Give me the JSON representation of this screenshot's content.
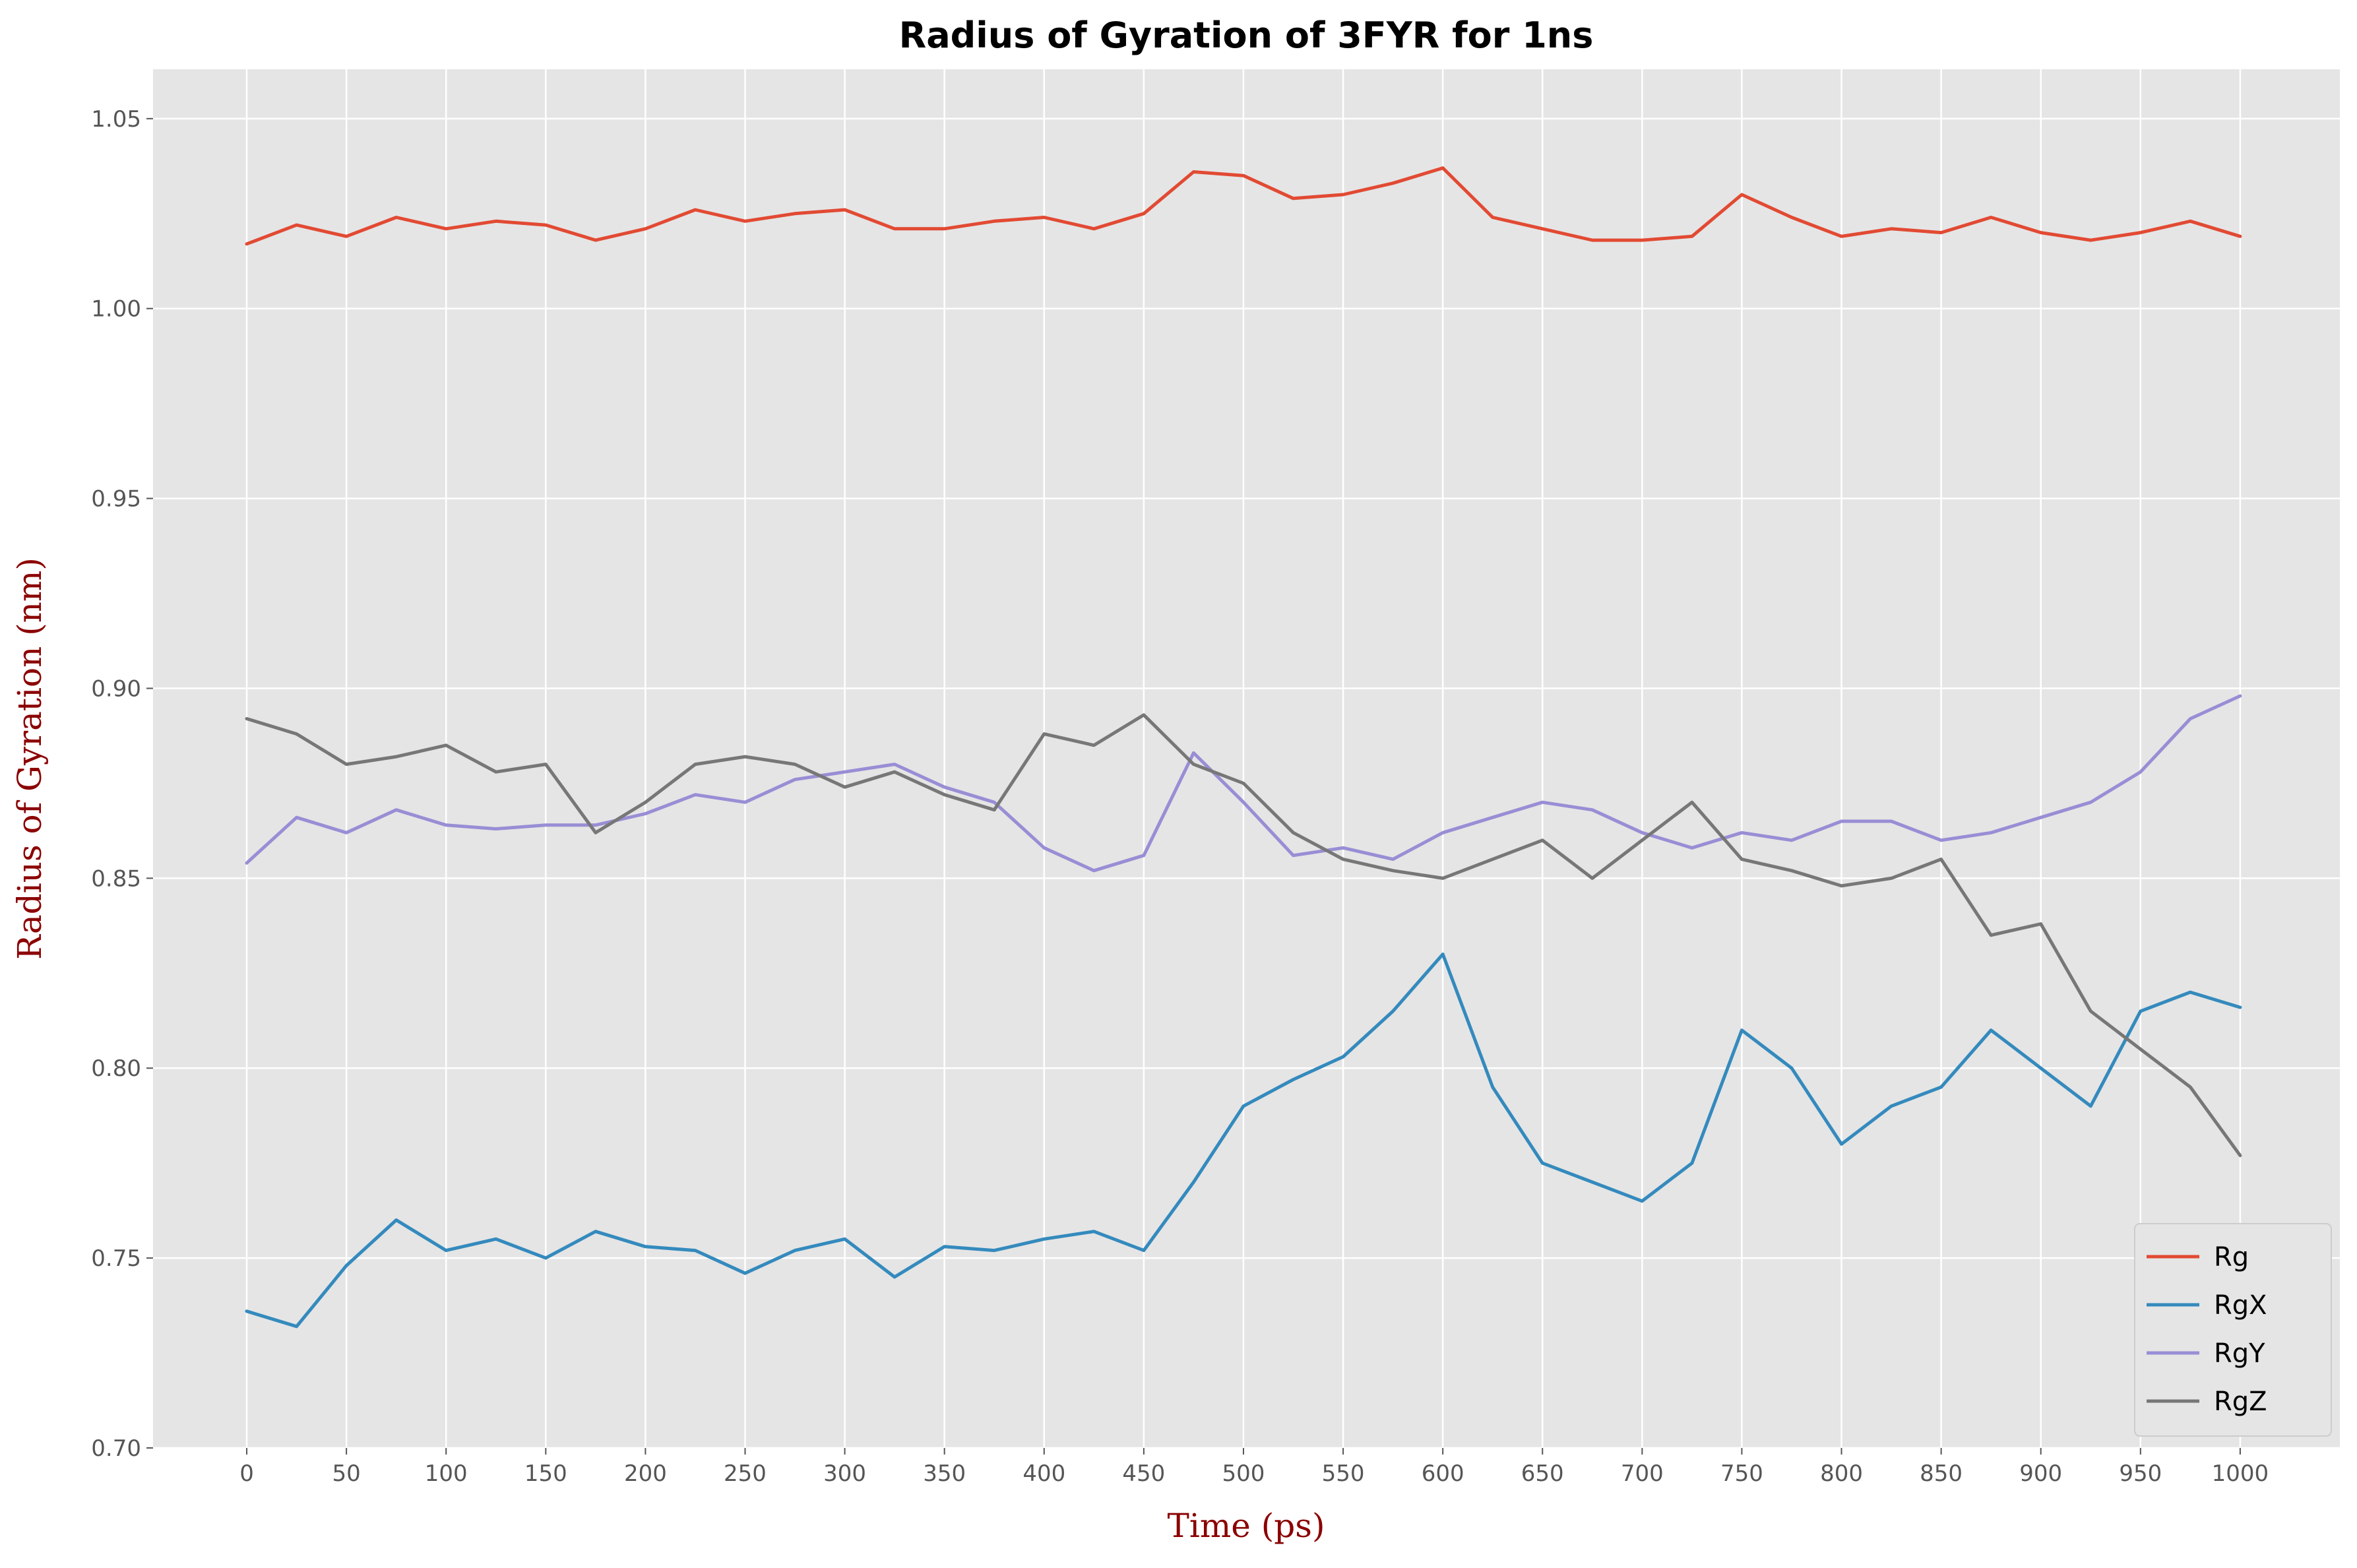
{
  "chart_data": {
    "type": "line",
    "title": "Radius of Gyration of 3FYR for 1ns",
    "xlabel": "Time (ps)",
    "ylabel": "Radius of Gyration (nm)",
    "xlim": [
      -47,
      1050
    ],
    "ylim": [
      0.7,
      1.063
    ],
    "xticks": [
      0,
      50,
      100,
      150,
      200,
      250,
      300,
      350,
      400,
      450,
      500,
      550,
      600,
      650,
      700,
      750,
      800,
      850,
      900,
      950,
      1000
    ],
    "yticks": [
      0.7,
      0.75,
      0.8,
      0.85,
      0.9,
      0.95,
      1.0,
      1.05
    ],
    "ytick_labels": [
      "0.70",
      "0.75",
      "0.80",
      "0.85",
      "0.90",
      "0.95",
      "1.00",
      "1.05"
    ],
    "grid": true,
    "legend_position": "lower-right",
    "x": [
      0,
      25,
      50,
      75,
      100,
      125,
      150,
      175,
      200,
      225,
      250,
      275,
      300,
      325,
      350,
      375,
      400,
      425,
      450,
      475,
      500,
      525,
      550,
      575,
      600,
      625,
      650,
      675,
      700,
      725,
      750,
      775,
      800,
      825,
      850,
      875,
      900,
      925,
      950,
      975,
      1000
    ],
    "series": [
      {
        "name": "Rg",
        "color": "#e24a33",
        "values": [
          1.017,
          1.022,
          1.019,
          1.024,
          1.021,
          1.023,
          1.022,
          1.018,
          1.021,
          1.026,
          1.023,
          1.025,
          1.026,
          1.021,
          1.021,
          1.023,
          1.024,
          1.021,
          1.025,
          1.036,
          1.035,
          1.029,
          1.03,
          1.033,
          1.037,
          1.024,
          1.021,
          1.018,
          1.018,
          1.019,
          1.03,
          1.024,
          1.019,
          1.021,
          1.02,
          1.024,
          1.02,
          1.018,
          1.02,
          1.023,
          1.019
        ]
      },
      {
        "name": "RgX",
        "color": "#348abd",
        "values": [
          0.736,
          0.732,
          0.748,
          0.76,
          0.752,
          0.755,
          0.75,
          0.757,
          0.753,
          0.752,
          0.746,
          0.752,
          0.755,
          0.745,
          0.753,
          0.752,
          0.755,
          0.757,
          0.752,
          0.77,
          0.79,
          0.797,
          0.803,
          0.815,
          0.83,
          0.795,
          0.775,
          0.77,
          0.765,
          0.775,
          0.81,
          0.8,
          0.78,
          0.79,
          0.795,
          0.81,
          0.8,
          0.79,
          0.815,
          0.82,
          0.816
        ]
      },
      {
        "name": "RgY",
        "color": "#988ed5",
        "values": [
          0.854,
          0.866,
          0.862,
          0.868,
          0.864,
          0.863,
          0.864,
          0.864,
          0.867,
          0.872,
          0.87,
          0.876,
          0.878,
          0.88,
          0.874,
          0.87,
          0.858,
          0.852,
          0.856,
          0.883,
          0.87,
          0.856,
          0.858,
          0.855,
          0.862,
          0.866,
          0.87,
          0.868,
          0.862,
          0.858,
          0.862,
          0.86,
          0.865,
          0.865,
          0.86,
          0.862,
          0.866,
          0.87,
          0.878,
          0.892,
          0.898
        ]
      },
      {
        "name": "RgZ",
        "color": "#777777",
        "values": [
          0.892,
          0.888,
          0.88,
          0.882,
          0.885,
          0.878,
          0.88,
          0.862,
          0.87,
          0.88,
          0.882,
          0.88,
          0.874,
          0.878,
          0.872,
          0.868,
          0.888,
          0.885,
          0.893,
          0.88,
          0.875,
          0.862,
          0.855,
          0.852,
          0.85,
          0.855,
          0.86,
          0.85,
          0.86,
          0.87,
          0.855,
          0.852,
          0.848,
          0.85,
          0.855,
          0.835,
          0.838,
          0.815,
          0.805,
          0.795,
          0.777
        ]
      }
    ]
  }
}
